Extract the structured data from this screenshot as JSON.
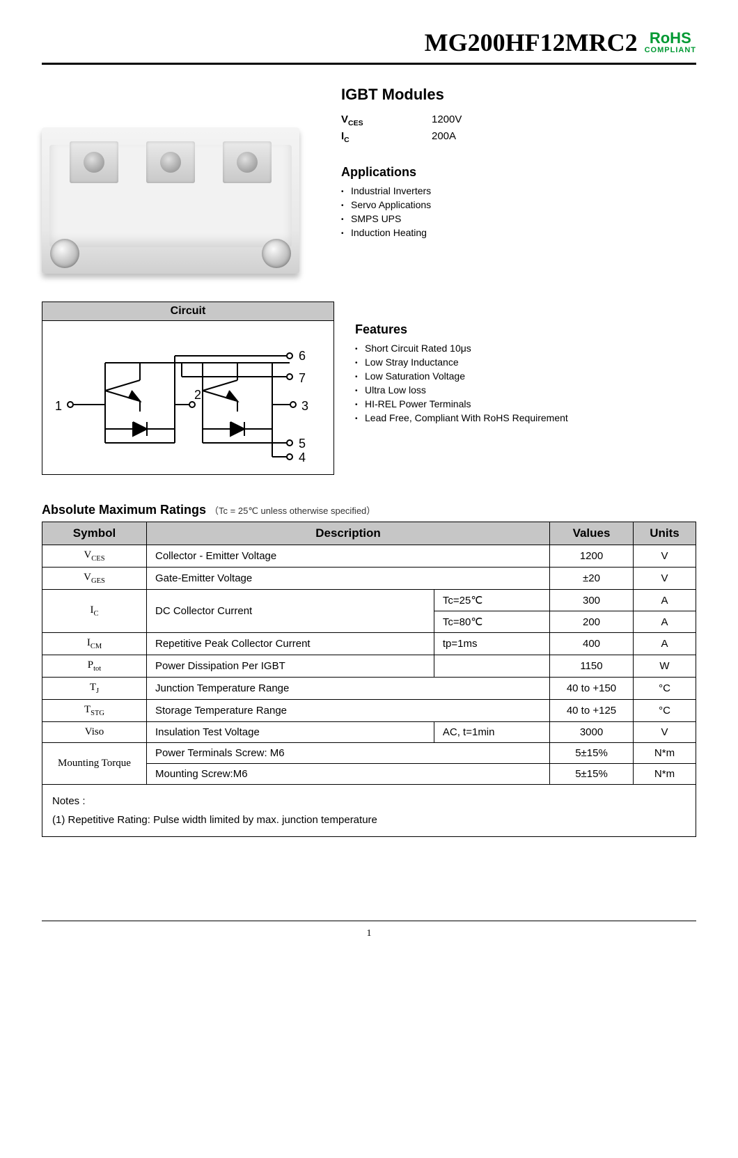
{
  "header": {
    "part_number": "MG200HF12MRC2",
    "rohs_title": "RoHS",
    "rohs_sub": "COMPLIANT"
  },
  "module": {
    "title": "IGBT Modules",
    "ratings": [
      {
        "sym_main": "V",
        "sym_sub": "CES",
        "value": "1200V"
      },
      {
        "sym_main": "I",
        "sym_sub": "C",
        "value": "200A"
      }
    ]
  },
  "applications": {
    "heading": "Applications",
    "items": [
      "Industrial Inverters",
      "Servo Applications",
      "SMPS UPS",
      "Induction Heating"
    ]
  },
  "features": {
    "heading": "Features",
    "items": [
      "Short Circuit Rated 10μs",
      "Low Stray Inductance",
      "Low Saturation Voltage",
      "Ultra Low loss",
      "HI-REL Power Terminals",
      "Lead Free, Compliant With RoHS Requirement"
    ]
  },
  "circuit": {
    "title": "Circuit",
    "pins": [
      "1",
      "2",
      "3",
      "4",
      "5",
      "6",
      "7"
    ]
  },
  "abs_ratings": {
    "heading_bold": "Absolute Maximum Ratings",
    "heading_cond": "（Tc = 25℃ unless otherwise specified）",
    "columns": [
      "Symbol",
      "Description",
      "Values",
      "Units"
    ],
    "rows": [
      {
        "sym_main": "V",
        "sym_sub": "CES",
        "desc": "Collector - Emitter Voltage",
        "cond": "",
        "value": "1200",
        "unit": "V",
        "rowspan_sym": 1,
        "rowspan_desc": 1,
        "cond_colspan": 0
      },
      {
        "sym_main": "V",
        "sym_sub": "GES",
        "desc": "Gate-Emitter Voltage",
        "cond": "",
        "value": "±20",
        "unit": "V",
        "rowspan_sym": 1,
        "rowspan_desc": 1,
        "cond_colspan": 0
      },
      {
        "sym_main": "I",
        "sym_sub": "C",
        "desc": "DC Collector Current",
        "cond": "Tc=25℃",
        "value": "300",
        "unit": "A",
        "rowspan_sym": 2,
        "rowspan_desc": 2,
        "cond_colspan": 1
      },
      {
        "sym_main": "",
        "sym_sub": "",
        "desc": "",
        "cond": "Tc=80℃",
        "value": "200",
        "unit": "A",
        "rowspan_sym": 0,
        "rowspan_desc": 0,
        "cond_colspan": 1
      },
      {
        "sym_main": "I",
        "sym_sub": "CM",
        "desc": "Repetitive Peak Collector Current",
        "cond": "tp=1ms",
        "value": "400",
        "unit": "A",
        "rowspan_sym": 1,
        "rowspan_desc": 1,
        "cond_colspan": 1
      },
      {
        "sym_main": "P",
        "sym_sub": "tot",
        "desc": "Power Dissipation Per IGBT",
        "cond": "",
        "value": "1150",
        "unit": "W",
        "rowspan_sym": 1,
        "rowspan_desc": 1,
        "cond_colspan": 1
      },
      {
        "sym_main": "T",
        "sym_sub": "J",
        "desc": "Junction Temperature Range",
        "cond": "",
        "value": "40 to +150",
        "unit": "°C",
        "rowspan_sym": 1,
        "rowspan_desc": 1,
        "cond_colspan": 0
      },
      {
        "sym_main": "T",
        "sym_sub": "STG",
        "desc": "Storage Temperature Range",
        "cond": "",
        "value": "40 to +125",
        "unit": "°C",
        "rowspan_sym": 1,
        "rowspan_desc": 1,
        "cond_colspan": 0
      },
      {
        "sym_main": "Viso",
        "sym_sub": "",
        "desc": "Insulation Test Voltage",
        "cond": "AC, t=1min",
        "value": "3000",
        "unit": "V",
        "rowspan_sym": 1,
        "rowspan_desc": 1,
        "cond_colspan": 1
      },
      {
        "sym_main": "Mounting Torque",
        "sym_sub": "",
        "desc": "Power Terminals Screw: M6",
        "cond": "",
        "value": "5±15%",
        "unit": "N*m",
        "rowspan_sym": 2,
        "rowspan_desc": 1,
        "cond_colspan": 0
      },
      {
        "sym_main": "",
        "sym_sub": "",
        "desc": "Mounting Screw:M6",
        "cond": "",
        "value": "5±15%",
        "unit": "N*m",
        "rowspan_sym": 0,
        "rowspan_desc": 1,
        "cond_colspan": 0
      }
    ],
    "notes_label": "Notes :",
    "notes_text": "(1) Repetitive Rating: Pulse width limited by max. junction temperature"
  },
  "page_number": "1"
}
